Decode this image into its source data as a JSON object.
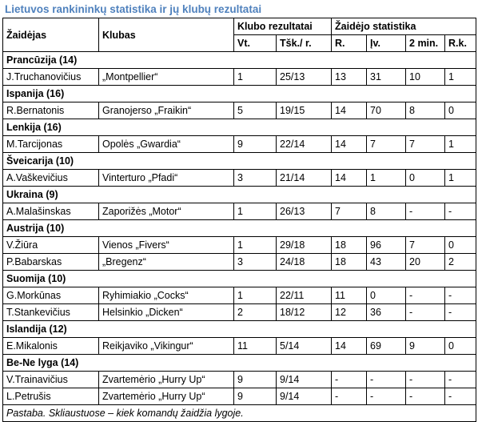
{
  "caption": "Lietuvos rankininkų statistika ir jų klubų rezultatai",
  "headers": {
    "player": "Žaidėjas",
    "club": "Klubas",
    "club_results": "Klubo rezultatai",
    "player_stats": "Žaidėjo statistika",
    "place": "Vt.",
    "points_games": "Tšk./ r.",
    "games": "R.",
    "goals": "Įv.",
    "two_min": "2 min.",
    "red_cards": "R.k."
  },
  "groups": [
    {
      "country": "Prancūzija (14)",
      "rows": [
        {
          "player": "J.Truchanovičius",
          "club": "„Montpellier“",
          "place": "1",
          "points": "25/13",
          "games": "13",
          "goals": "31",
          "two_min": "10",
          "red": "1"
        }
      ]
    },
    {
      "country": "Ispanija (16)",
      "rows": [
        {
          "player": "R.Bernatonis",
          "club": "Granojerso „Fraikin“",
          "place": "5",
          "points": "19/15",
          "games": "14",
          "goals": "70",
          "two_min": "8",
          "red": "0"
        }
      ]
    },
    {
      "country": "Lenkija (16)",
      "rows": [
        {
          "player": "M.Tarcijonas",
          "club": "Opolės „Gwardia“",
          "place": "9",
          "points": "22/14",
          "games": "14",
          "goals": "7",
          "two_min": "7",
          "red": "1"
        }
      ]
    },
    {
      "country": "Šveicarija (10)",
      "rows": [
        {
          "player": "A.Vaškevičius",
          "club": "Vinterturo „Pfadi“",
          "place": "3",
          "points": "21/14",
          "games": "14",
          "goals": "1",
          "two_min": "0",
          "red": "1"
        }
      ]
    },
    {
      "country": "Ukraina (9)",
      "rows": [
        {
          "player": "A.Malašinskas",
          "club": "Zaporižės „Motor“",
          "place": "1",
          "points": "26/13",
          "games": "7",
          "goals": "8",
          "two_min": "-",
          "red": "-"
        }
      ]
    },
    {
      "country": "Austrija (10)",
      "rows": [
        {
          "player": "V.Žiūra",
          "club": "Vienos „Fivers“",
          "place": "1",
          "points": "29/18",
          "games": "18",
          "goals": "96",
          "two_min": "7",
          "red": "0"
        },
        {
          "player": "P.Babarskas",
          "club": "„Bregenz“",
          "place": "3",
          "points": "24/18",
          "games": "18",
          "goals": "43",
          "two_min": "20",
          "red": "2"
        }
      ]
    },
    {
      "country": "Suomija (10)",
      "rows": [
        {
          "player": "G.Morkūnas",
          "club": "Ryhimiakio „Cocks“",
          "place": "1",
          "points": "22/11",
          "games": "11",
          "goals": "0",
          "two_min": "-",
          "red": "-"
        },
        {
          "player": "T.Stankevičius",
          "club": "Helsinkio „Dicken“",
          "place": "2",
          "points": "18/12",
          "games": "12",
          "goals": "36",
          "two_min": "-",
          "red": "-"
        }
      ]
    },
    {
      "country": "Islandija (12)",
      "rows": [
        {
          "player": "E.Mikalonis",
          "club": "Reikjaviko „Vikingur“",
          "place": "11",
          "points": "5/14",
          "games": "14",
          "goals": "69",
          "two_min": "9",
          "red": "0"
        }
      ]
    },
    {
      "country": "Be-Ne lyga (14)",
      "rows": [
        {
          "player": "V.Trainavičius",
          "club": "Zvartemėrio „Hurry Up“",
          "place": "9",
          "points": "9/14",
          "games": "-",
          "goals": "-",
          "two_min": "-",
          "red": "-"
        },
        {
          "player": "L.Petrušis",
          "club": "Zvartemėrio „Hurry Up“",
          "place": "9",
          "points": "9/14",
          "games": "-",
          "goals": "-",
          "two_min": "-",
          "red": "-"
        }
      ]
    }
  ],
  "note": "Pastaba. Skliaustuose – kiek komandų žaidžia lygoje."
}
